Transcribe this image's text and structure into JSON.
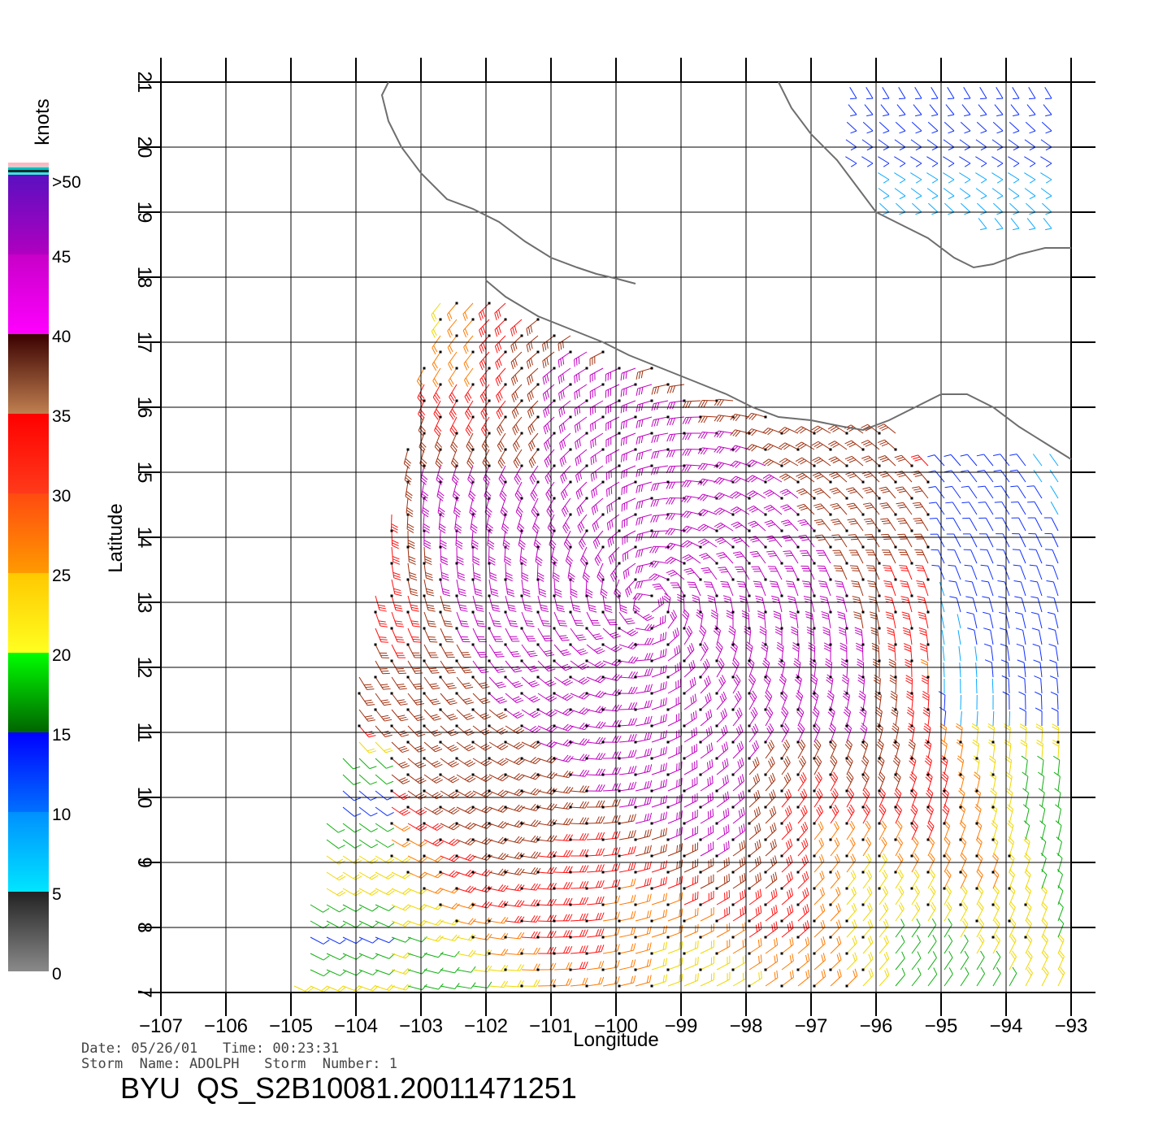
{
  "legend": {
    "unit": "knots",
    "labels": [
      ">50",
      "45",
      "40",
      "35",
      "30",
      "25",
      "20",
      "15",
      "10",
      "5",
      "0"
    ],
    "stops": [
      {
        "from": 0,
        "to": 5,
        "c1": "#8a8a8a",
        "c2": "#222222"
      },
      {
        "from": 5,
        "to": 10,
        "c1": "#00e5ff",
        "c2": "#0090ff"
      },
      {
        "from": 10,
        "to": 15,
        "c1": "#0070ff",
        "c2": "#0000ff"
      },
      {
        "from": 15,
        "to": 20,
        "c1": "#006400",
        "c2": "#00ff00"
      },
      {
        "from": 20,
        "to": 25,
        "c1": "#ffff20",
        "c2": "#ffc800"
      },
      {
        "from": 25,
        "to": 30,
        "c1": "#ff9a00",
        "c2": "#ff4a10"
      },
      {
        "from": 30,
        "to": 35,
        "c1": "#ff3a1a",
        "c2": "#ff0000"
      },
      {
        "from": 35,
        "to": 40,
        "c1": "#c08050",
        "c2": "#3a0000"
      },
      {
        "from": 40,
        "to": 45,
        "c1": "#ff00ff",
        "c2": "#c800c8"
      },
      {
        "from": 45,
        "to": 50,
        "c1": "#b000c0",
        "c2": "#5a10c0"
      }
    ]
  },
  "axes": {
    "xlabel": "Longitude",
    "ylabel": "Latitude",
    "xlim": [
      -107,
      -93
    ],
    "ylim": [
      7,
      21
    ],
    "xticks": [
      "-107",
      "-106",
      "-105",
      "-104",
      "-103",
      "-102",
      "-101",
      "-100",
      "-99",
      "-98",
      "-97",
      "-96",
      "-95",
      "-94",
      "-93"
    ],
    "yticks": [
      "7",
      "8",
      "9",
      "10",
      "11",
      "12",
      "13",
      "14",
      "15",
      "16",
      "17",
      "18",
      "19",
      "20",
      "21"
    ]
  },
  "coastline": [
    [
      -102.0,
      17.95
    ],
    [
      -101.7,
      17.7
    ],
    [
      -101.2,
      17.4
    ],
    [
      -100.7,
      17.2
    ],
    [
      -100.2,
      17.0
    ],
    [
      -99.8,
      16.8
    ],
    [
      -99.3,
      16.6
    ],
    [
      -98.8,
      16.4
    ],
    [
      -98.3,
      16.2
    ],
    [
      -97.9,
      16.0
    ],
    [
      -97.5,
      15.85
    ],
    [
      -97.0,
      15.8
    ],
    [
      -96.5,
      15.7
    ],
    [
      -96.2,
      15.65
    ],
    [
      -95.8,
      15.8
    ],
    [
      -95.5,
      15.95
    ],
    [
      -95.2,
      16.1
    ],
    [
      -95.0,
      16.2
    ],
    [
      -94.6,
      16.2
    ],
    [
      -94.2,
      16.0
    ],
    [
      -93.8,
      15.7
    ],
    [
      -93.4,
      15.45
    ],
    [
      -93.0,
      15.2
    ]
  ],
  "coastline_north_west": [
    [
      -103.5,
      21.0
    ],
    [
      -103.6,
      20.8
    ],
    [
      -103.5,
      20.4
    ],
    [
      -103.3,
      20.0
    ],
    [
      -103.0,
      19.6
    ],
    [
      -102.6,
      19.2
    ],
    [
      -102.2,
      19.05
    ],
    [
      -101.8,
      18.85
    ],
    [
      -101.4,
      18.55
    ],
    [
      -101.0,
      18.3
    ],
    [
      -100.6,
      18.15
    ],
    [
      -100.3,
      18.05
    ],
    [
      -100.0,
      17.98
    ],
    [
      -99.7,
      17.9
    ]
  ],
  "coastline_northeast": [
    [
      -97.5,
      21.0
    ],
    [
      -97.3,
      20.6
    ],
    [
      -97.0,
      20.2
    ],
    [
      -96.6,
      19.8
    ],
    [
      -96.3,
      19.4
    ],
    [
      -96.0,
      19.0
    ],
    [
      -95.6,
      18.8
    ],
    [
      -95.2,
      18.6
    ],
    [
      -94.8,
      18.3
    ],
    [
      -94.5,
      18.15
    ],
    [
      -94.2,
      18.2
    ],
    [
      -93.8,
      18.35
    ],
    [
      -93.4,
      18.45
    ],
    [
      -93.0,
      18.45
    ]
  ],
  "footer": {
    "date_line": "Date: 05/26/01   Time: 00:23:31",
    "storm_line": "Storm  Name: ADOLPH   Storm  Number: 1",
    "id": "BYU  QS_S2B10081.20011471251"
  },
  "colors": {
    "axis": "#000000",
    "grid": "#000000",
    "coast": "#6e6e6e"
  }
}
